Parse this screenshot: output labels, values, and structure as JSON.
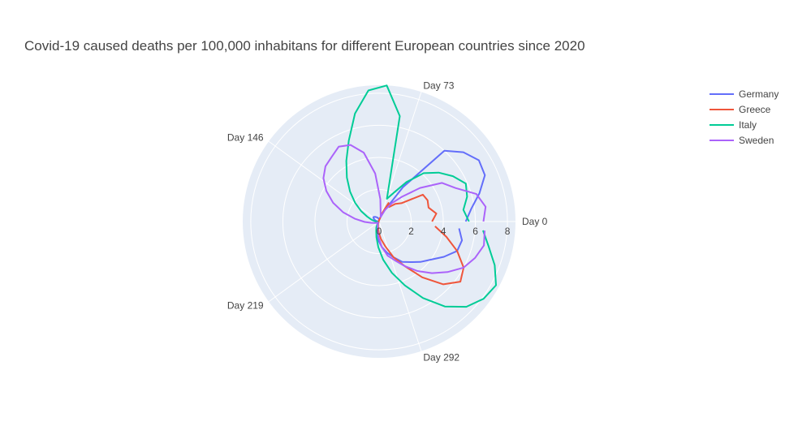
{
  "chart_data": {
    "type": "line",
    "subtype": "polar",
    "title": "Covid-19 caused deaths per 100,000 inhabitans for different European countries since 2020",
    "radial_axis": {
      "range": [
        0,
        8.5
      ],
      "tick_labels": [
        "0",
        "2",
        "4",
        "6",
        "8"
      ]
    },
    "angular_axis": {
      "unit": "day",
      "period": 365,
      "direction": "counterclockwise",
      "tick_labels": [
        "Day 0",
        "Day 73",
        "Day 146",
        "Day 219",
        "Day 292"
      ]
    },
    "grid": true,
    "legend": "top-right",
    "series": [
      {
        "name": "Germany",
        "color": "#636efa",
        "points": [
          [
            0,
            5.4
          ],
          [
            8,
            5.8
          ],
          [
            16,
            6.5
          ],
          [
            24,
            7.2
          ],
          [
            32,
            7.3
          ],
          [
            40,
            6.8
          ],
          [
            48,
            6.0
          ],
          [
            56,
            2.6
          ],
          [
            64,
            0.8
          ],
          [
            72,
            0.3
          ],
          [
            80,
            0.15
          ],
          [
            88,
            0.1
          ],
          [
            96,
            0.15
          ],
          [
            104,
            0.2
          ],
          [
            112,
            0.25
          ],
          [
            120,
            0.3
          ],
          [
            128,
            0.35
          ],
          [
            136,
            0.4
          ],
          [
            144,
            0.45
          ],
          [
            152,
            0.4
          ],
          [
            160,
            0.3
          ],
          [
            168,
            0.2
          ],
          [
            176,
            0.1
          ],
          [
            184,
            0.05
          ],
          [
            192,
            0.05
          ],
          [
            200,
            0.05
          ],
          [
            208,
            0.05
          ],
          [
            216,
            0.05
          ],
          [
            224,
            0.05
          ],
          [
            232,
            0.05
          ],
          [
            240,
            0.1
          ],
          [
            248,
            0.2
          ],
          [
            256,
            0.4
          ],
          [
            264,
            0.8
          ],
          [
            272,
            1.2
          ],
          [
            280,
            1.6
          ],
          [
            288,
            2.0
          ],
          [
            296,
            2.4
          ],
          [
            304,
            2.9
          ],
          [
            312,
            3.2
          ],
          [
            320,
            3.6
          ],
          [
            328,
            4.0
          ],
          [
            336,
            4.6
          ],
          [
            344,
            5.2
          ],
          [
            352,
            5.3
          ],
          [
            360,
            5.0
          ]
        ]
      },
      {
        "name": "Greece",
        "color": "#ef553b",
        "points": [
          [
            0,
            3.3
          ],
          [
            8,
            3.6
          ],
          [
            16,
            3.2
          ],
          [
            24,
            3.3
          ],
          [
            32,
            3.2
          ],
          [
            40,
            1.8
          ],
          [
            48,
            1.5
          ],
          [
            56,
            1.1
          ],
          [
            64,
            1.3
          ],
          [
            72,
            0.5
          ],
          [
            80,
            0.15
          ],
          [
            88,
            0.1
          ],
          [
            96,
            0.05
          ],
          [
            104,
            0.05
          ],
          [
            112,
            0.05
          ],
          [
            120,
            0.05
          ],
          [
            128,
            0.05
          ],
          [
            136,
            0.05
          ],
          [
            144,
            0.05
          ],
          [
            152,
            0.05
          ],
          [
            160,
            0.05
          ],
          [
            168,
            0.05
          ],
          [
            176,
            0.05
          ],
          [
            184,
            0.05
          ],
          [
            192,
            0.05
          ],
          [
            200,
            0.05
          ],
          [
            208,
            0.05
          ],
          [
            216,
            0.05
          ],
          [
            224,
            0.05
          ],
          [
            232,
            0.05
          ],
          [
            240,
            0.05
          ],
          [
            248,
            0.1
          ],
          [
            256,
            0.2
          ],
          [
            264,
            0.4
          ],
          [
            272,
            0.7
          ],
          [
            280,
            1.1
          ],
          [
            288,
            1.6
          ],
          [
            296,
            2.4
          ],
          [
            304,
            3.2
          ],
          [
            312,
            4.4
          ],
          [
            320,
            5.6
          ],
          [
            328,
            6.3
          ],
          [
            336,
            6.0
          ],
          [
            344,
            5.2
          ],
          [
            352,
            4.3
          ],
          [
            360,
            3.5
          ]
        ]
      },
      {
        "name": "Italy",
        "color": "#00cc96",
        "points": [
          [
            0,
            5.6
          ],
          [
            8,
            5.3
          ],
          [
            16,
            5.7
          ],
          [
            24,
            5.9
          ],
          [
            32,
            5.4
          ],
          [
            40,
            4.8
          ],
          [
            48,
            4.1
          ],
          [
            56,
            3.0
          ],
          [
            64,
            2.0
          ],
          [
            72,
            1.5
          ],
          [
            80,
            6.7
          ],
          [
            88,
            8.5
          ],
          [
            96,
            8.2
          ],
          [
            104,
            6.9
          ],
          [
            112,
            5.4
          ],
          [
            120,
            4.3
          ],
          [
            128,
            3.4
          ],
          [
            136,
            2.6
          ],
          [
            144,
            1.9
          ],
          [
            152,
            1.3
          ],
          [
            160,
            0.8
          ],
          [
            168,
            0.5
          ],
          [
            176,
            0.3
          ],
          [
            184,
            0.2
          ],
          [
            192,
            0.1
          ],
          [
            200,
            0.1
          ],
          [
            208,
            0.1
          ],
          [
            216,
            0.1
          ],
          [
            224,
            0.1
          ],
          [
            232,
            0.1
          ],
          [
            240,
            0.2
          ],
          [
            248,
            0.4
          ],
          [
            256,
            0.6
          ],
          [
            264,
            1.0
          ],
          [
            272,
            1.6
          ],
          [
            280,
            2.4
          ],
          [
            288,
            3.3
          ],
          [
            296,
            4.3
          ],
          [
            304,
            5.5
          ],
          [
            312,
            6.7
          ],
          [
            320,
            7.6
          ],
          [
            328,
            8.1
          ],
          [
            336,
            8.3
          ],
          [
            344,
            7.7
          ],
          [
            352,
            7.0
          ],
          [
            360,
            6.5
          ]
        ]
      },
      {
        "name": "Sweden",
        "color": "#ab63fa",
        "points": [
          [
            0,
            6.5
          ],
          [
            8,
            6.7
          ],
          [
            16,
            6.3
          ],
          [
            24,
            5.2
          ],
          [
            32,
            4.6
          ],
          [
            40,
            3.3
          ],
          [
            48,
            2.1
          ],
          [
            56,
            1.4
          ],
          [
            64,
            0.8
          ],
          [
            72,
            0.3
          ],
          [
            80,
            0.5
          ],
          [
            88,
            1.4
          ],
          [
            96,
            3.0
          ],
          [
            104,
            4.4
          ],
          [
            112,
            5.1
          ],
          [
            120,
            5.3
          ],
          [
            128,
            5.0
          ],
          [
            136,
            4.8
          ],
          [
            144,
            4.4
          ],
          [
            152,
            3.8
          ],
          [
            160,
            3.1
          ],
          [
            168,
            2.3
          ],
          [
            176,
            1.5
          ],
          [
            184,
            0.9
          ],
          [
            192,
            0.5
          ],
          [
            200,
            0.3
          ],
          [
            208,
            0.2
          ],
          [
            216,
            0.1
          ],
          [
            224,
            0.1
          ],
          [
            232,
            0.1
          ],
          [
            240,
            0.1
          ],
          [
            248,
            0.2
          ],
          [
            256,
            0.3
          ],
          [
            264,
            0.6
          ],
          [
            272,
            1.0
          ],
          [
            280,
            1.6
          ],
          [
            288,
            2.2
          ],
          [
            296,
            2.6
          ],
          [
            304,
            3.2
          ],
          [
            312,
            3.9
          ],
          [
            320,
            4.6
          ],
          [
            328,
            5.3
          ],
          [
            336,
            6.0
          ],
          [
            344,
            6.4
          ],
          [
            352,
            6.7
          ],
          [
            360,
            6.6
          ]
        ]
      }
    ]
  }
}
